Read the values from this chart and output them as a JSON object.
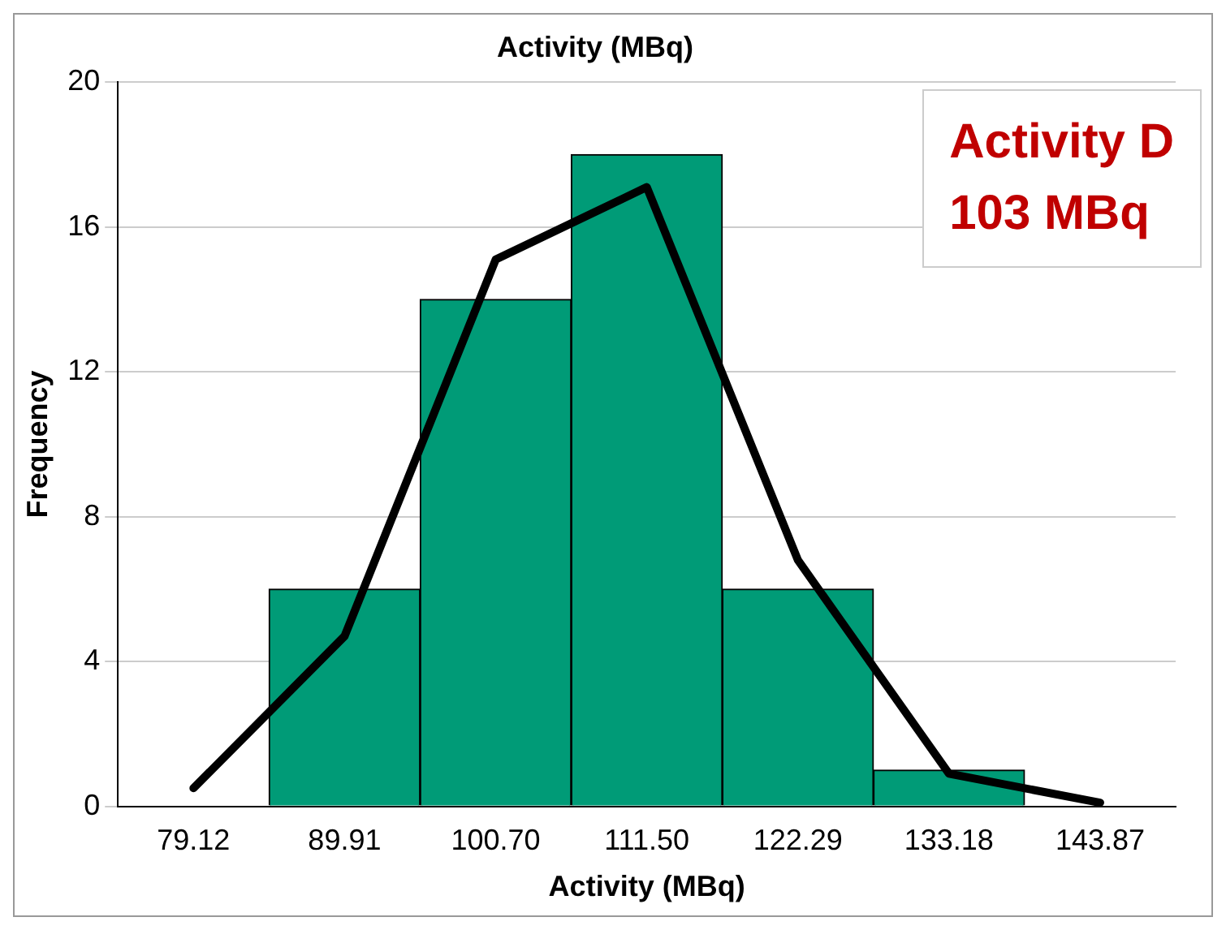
{
  "chart_data": {
    "type": "bar",
    "title": "Activity (MBq)",
    "xlabel": "Activity (MBq)",
    "ylabel": "Frequency",
    "categories": [
      "79.12",
      "89.91",
      "100.70",
      "111.50",
      "122.29",
      "133.18",
      "143.87"
    ],
    "series": [
      {
        "color": "#009b77",
        "values": [
          0,
          6,
          14,
          18,
          6,
          1,
          0
        ]
      },
      {
        "type": "line",
        "color": "#000000",
        "values": [
          0.5,
          4.7,
          15.1,
          17.1,
          6.8,
          0.9,
          0.1
        ]
      }
    ],
    "ylim": [
      0,
      20
    ],
    "yticks": [
      0,
      4,
      8,
      12,
      16,
      20
    ],
    "grid": "y",
    "legend": false,
    "marker": "none",
    "annotations": [
      "Activity D",
      "103 MBq"
    ]
  }
}
